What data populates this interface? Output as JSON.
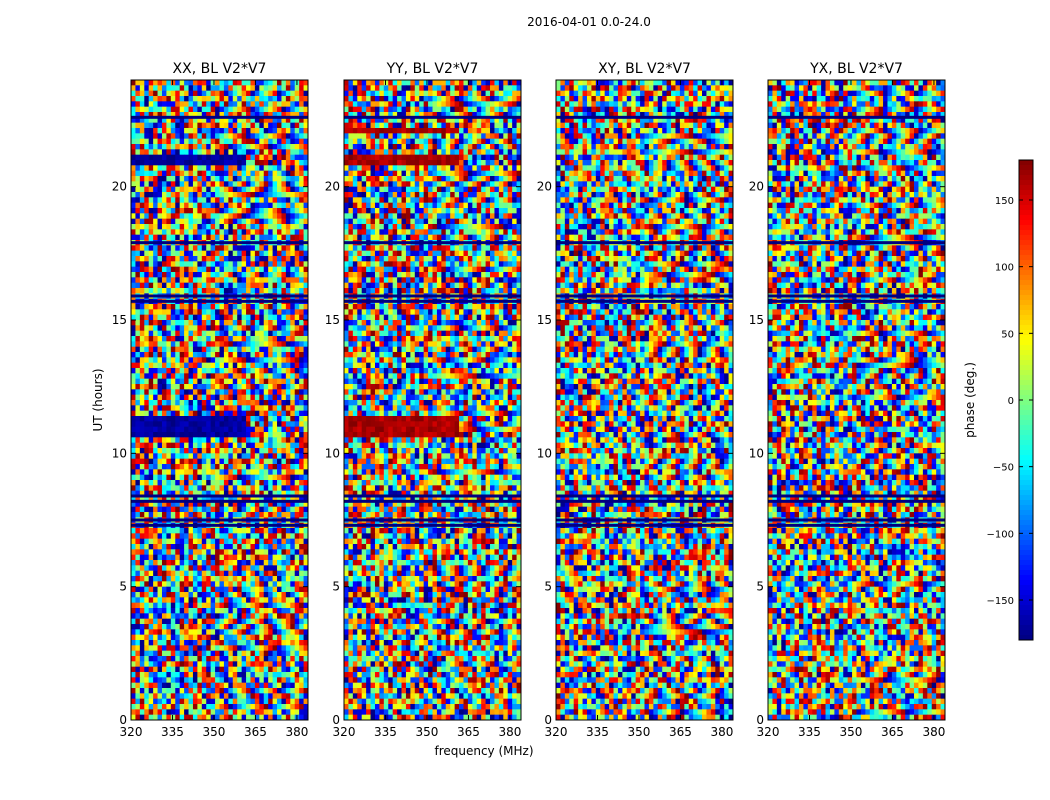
{
  "chart_data": {
    "type": "heatmap",
    "suptitle": "2016-04-01 0.0-24.0",
    "xlabel": "frequency (MHz)",
    "ylabel": "UT (hours)",
    "xlim": [
      320,
      384
    ],
    "ylim": [
      0,
      24
    ],
    "x_ticks": [
      320,
      335,
      350,
      365,
      380
    ],
    "y_ticks": [
      0,
      5,
      10,
      15,
      20
    ],
    "colorbar": {
      "label": "phase (deg.)",
      "range": [
        -180,
        180
      ],
      "ticks": [
        150,
        100,
        50,
        0,
        -50,
        -100,
        -150
      ],
      "tick_labels": [
        "150",
        "100",
        "50",
        "0",
        "−50",
        "−100",
        "−150"
      ],
      "colormap": "jet"
    },
    "panels": [
      {
        "title": "XX, BL V2*V7",
        "bias_phase_deg": -170,
        "bias_bands_hours": [
          [
            10.6,
            11.4
          ],
          [
            20.9,
            21.1
          ]
        ]
      },
      {
        "title": "YY, BL V2*V7",
        "bias_phase_deg": 165,
        "bias_bands_hours": [
          [
            10.6,
            11.4
          ],
          [
            20.9,
            21.1
          ],
          [
            22.0,
            22.2
          ]
        ]
      },
      {
        "title": "XY, BL V2*V7",
        "bias_phase_deg": 0,
        "bias_bands_hours": []
      },
      {
        "title": "YX, BL V2*V7",
        "bias_phase_deg": 0,
        "bias_bands_hours": []
      }
    ],
    "dark_bands_hours": [
      7.3,
      7.5,
      8.2,
      8.4,
      15.7,
      15.9,
      17.9,
      22.6
    ]
  }
}
